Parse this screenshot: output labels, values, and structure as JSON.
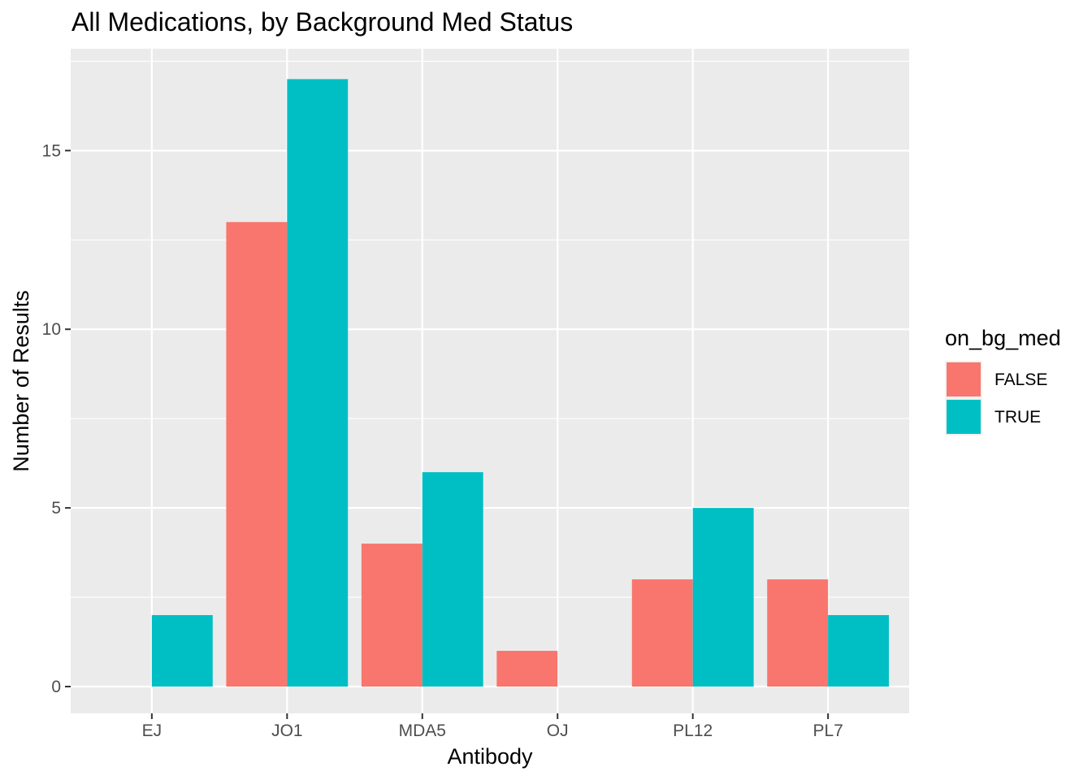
{
  "chart_data": {
    "type": "bar",
    "title": "All Medications, by Background Med Status",
    "xlabel": "Antibody",
    "ylabel": "Number of Results",
    "categories": [
      "EJ",
      "JO1",
      "MDA5",
      "OJ",
      "PL12",
      "PL7"
    ],
    "series": [
      {
        "name": "FALSE",
        "color": "#F8766D",
        "values": [
          0,
          13,
          4,
          1,
          3,
          3
        ]
      },
      {
        "name": "TRUE",
        "color": "#00BFC4",
        "values": [
          2,
          17,
          6,
          0,
          5,
          2
        ]
      }
    ],
    "ylim": [
      -0.75,
      17.85
    ],
    "yticks": [
      0,
      5,
      10,
      15
    ],
    "ytick_labels": [
      "0",
      "5",
      "10",
      "15"
    ],
    "grid": true,
    "legend": {
      "title": "on_bg_med",
      "position": "right"
    },
    "colors": {
      "panel": "#EBEBEB",
      "grid": "#FFFFFF",
      "tick_text": "#4D4D4D"
    }
  }
}
